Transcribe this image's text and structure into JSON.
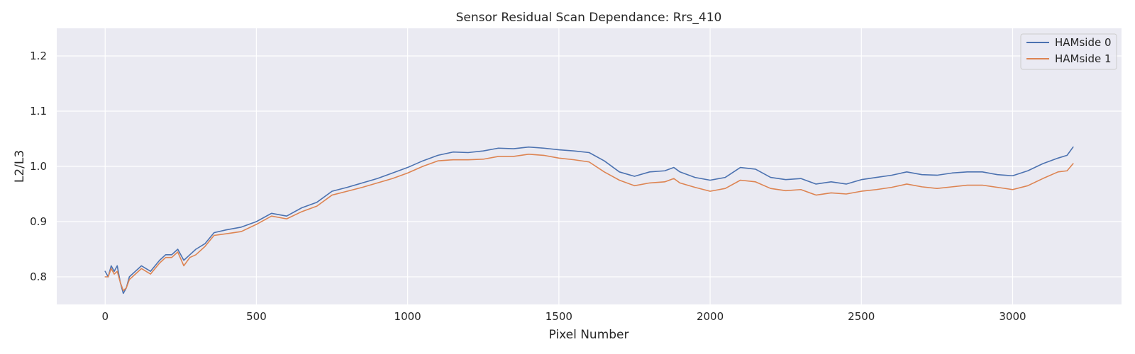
{
  "chart_data": {
    "type": "line",
    "title": "Sensor Residual Scan Dependance: Rrs_410",
    "xlabel": "Pixel Number",
    "ylabel": "L2/L3",
    "xlim": [
      -160,
      3360
    ],
    "ylim": [
      0.75,
      1.25
    ],
    "xticks": [
      0,
      500,
      1000,
      1500,
      2000,
      2500,
      3000
    ],
    "yticks": [
      0.8,
      0.9,
      1.0,
      1.1,
      1.2
    ],
    "ytick_labels": [
      "0.8",
      "0.9",
      "1.0",
      "1.1",
      "1.2"
    ],
    "grid": true,
    "legend_position": "top-right",
    "series": [
      {
        "name": "HAMside 0",
        "color": "#4c72b0",
        "x": [
          0,
          10,
          20,
          30,
          40,
          50,
          60,
          70,
          80,
          100,
          120,
          150,
          180,
          200,
          220,
          240,
          260,
          280,
          300,
          330,
          360,
          400,
          450,
          500,
          550,
          600,
          650,
          700,
          750,
          800,
          850,
          900,
          950,
          1000,
          1050,
          1100,
          1150,
          1200,
          1250,
          1300,
          1350,
          1400,
          1450,
          1500,
          1550,
          1600,
          1650,
          1700,
          1750,
          1800,
          1850,
          1880,
          1900,
          1950,
          2000,
          2050,
          2100,
          2150,
          2200,
          2250,
          2300,
          2350,
          2400,
          2450,
          2500,
          2550,
          2600,
          2650,
          2700,
          2750,
          2800,
          2850,
          2900,
          2950,
          3000,
          3050,
          3100,
          3150,
          3180,
          3200
        ],
        "y": [
          0.81,
          0.8,
          0.82,
          0.81,
          0.82,
          0.79,
          0.77,
          0.78,
          0.8,
          0.81,
          0.82,
          0.81,
          0.83,
          0.84,
          0.84,
          0.85,
          0.83,
          0.84,
          0.85,
          0.86,
          0.88,
          0.885,
          0.89,
          0.9,
          0.915,
          0.91,
          0.925,
          0.935,
          0.955,
          0.962,
          0.97,
          0.978,
          0.988,
          0.998,
          1.01,
          1.02,
          1.026,
          1.025,
          1.028,
          1.033,
          1.032,
          1.035,
          1.033,
          1.03,
          1.028,
          1.025,
          1.01,
          0.99,
          0.982,
          0.99,
          0.992,
          0.998,
          0.99,
          0.98,
          0.975,
          0.98,
          0.998,
          0.995,
          0.98,
          0.976,
          0.978,
          0.968,
          0.972,
          0.968,
          0.976,
          0.98,
          0.984,
          0.99,
          0.985,
          0.984,
          0.988,
          0.99,
          0.99,
          0.985,
          0.983,
          0.992,
          1.005,
          1.015,
          1.02,
          1.035
        ]
      },
      {
        "name": "HAMside 1",
        "color": "#dd8452",
        "x": [
          0,
          10,
          20,
          30,
          40,
          50,
          60,
          70,
          80,
          100,
          120,
          150,
          180,
          200,
          220,
          240,
          260,
          280,
          300,
          330,
          360,
          400,
          450,
          500,
          550,
          600,
          650,
          700,
          750,
          800,
          850,
          900,
          950,
          1000,
          1050,
          1100,
          1150,
          1200,
          1250,
          1300,
          1350,
          1400,
          1450,
          1500,
          1550,
          1600,
          1650,
          1700,
          1750,
          1800,
          1850,
          1880,
          1900,
          1950,
          2000,
          2050,
          2100,
          2150,
          2200,
          2250,
          2300,
          2350,
          2400,
          2450,
          2500,
          2550,
          2600,
          2650,
          2700,
          2750,
          2800,
          2850,
          2900,
          2950,
          3000,
          3050,
          3100,
          3150,
          3180,
          3200
        ],
        "y": [
          0.8,
          0.8,
          0.815,
          0.805,
          0.81,
          0.79,
          0.775,
          0.78,
          0.795,
          0.805,
          0.815,
          0.805,
          0.825,
          0.835,
          0.835,
          0.845,
          0.82,
          0.835,
          0.84,
          0.855,
          0.875,
          0.878,
          0.882,
          0.895,
          0.91,
          0.905,
          0.918,
          0.928,
          0.948,
          0.955,
          0.962,
          0.97,
          0.978,
          0.988,
          1.0,
          1.01,
          1.012,
          1.012,
          1.013,
          1.018,
          1.018,
          1.022,
          1.02,
          1.015,
          1.012,
          1.008,
          0.99,
          0.975,
          0.965,
          0.97,
          0.972,
          0.978,
          0.97,
          0.962,
          0.955,
          0.96,
          0.975,
          0.972,
          0.96,
          0.956,
          0.958,
          0.948,
          0.952,
          0.95,
          0.955,
          0.958,
          0.962,
          0.968,
          0.963,
          0.96,
          0.963,
          0.966,
          0.966,
          0.962,
          0.958,
          0.965,
          0.978,
          0.99,
          0.992,
          1.005
        ]
      }
    ]
  }
}
